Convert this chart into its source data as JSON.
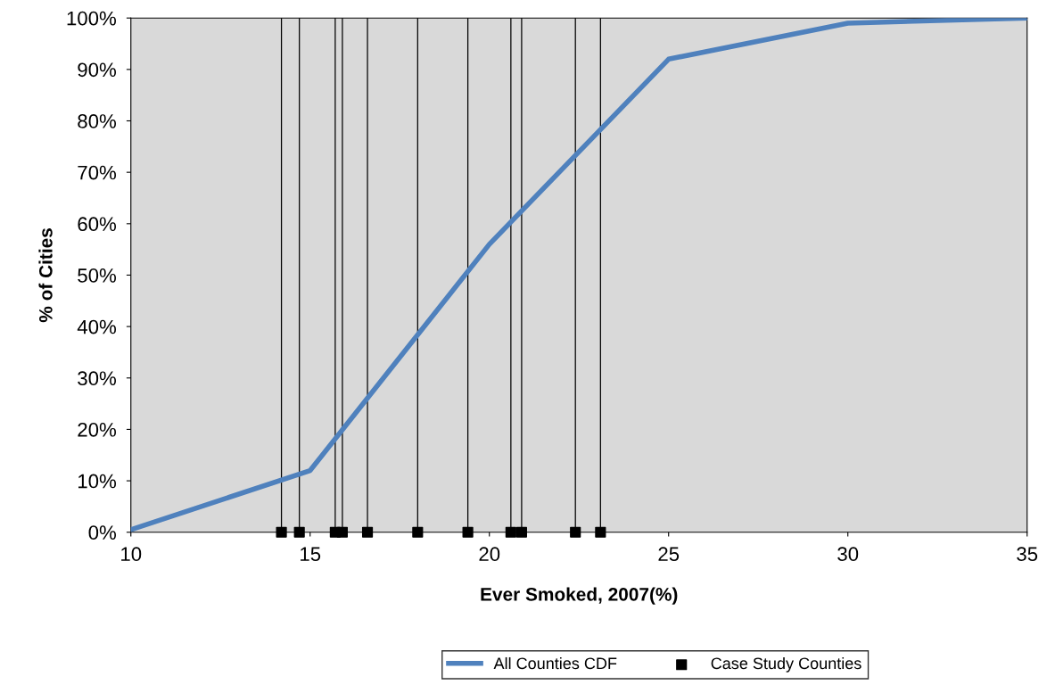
{
  "chart_data": {
    "type": "line",
    "xlabel": "Ever Smoked, 2007(%)",
    "ylabel": "% of Cities",
    "xlim": [
      10,
      35
    ],
    "xticks": [
      10,
      15,
      20,
      25,
      30,
      35
    ],
    "ylim": [
      0,
      100
    ],
    "yticks": [
      {
        "value": 0,
        "label": "0%"
      },
      {
        "value": 10,
        "label": "10%"
      },
      {
        "value": 20,
        "label": "20%"
      },
      {
        "value": 30,
        "label": "30%"
      },
      {
        "value": 40,
        "label": "40%"
      },
      {
        "value": 50,
        "label": "50%"
      },
      {
        "value": 60,
        "label": "60%"
      },
      {
        "value": 70,
        "label": "70%"
      },
      {
        "value": 80,
        "label": "80%"
      },
      {
        "value": 90,
        "label": "90%"
      },
      {
        "value": 100,
        "label": "100%"
      }
    ],
    "series": [
      {
        "name": "All Counties CDF",
        "color": "#4f81bd",
        "marker": "none",
        "x": [
          10,
          15,
          20,
          25,
          30,
          35
        ],
        "values": [
          0.5,
          12,
          56,
          92,
          99,
          100
        ]
      },
      {
        "name": "Case Study Counties",
        "type": "scatter",
        "color": "#000000",
        "marker": "square",
        "x": [
          14.2,
          14.7,
          15.7,
          15.9,
          16.6,
          18.0,
          19.4,
          20.6,
          20.9,
          22.4,
          23.1
        ],
        "values": [
          0,
          0,
          0,
          0,
          0,
          0,
          0,
          0,
          0,
          0,
          0
        ]
      }
    ],
    "ref_lines": [
      {
        "axis": "x",
        "value": 14.2,
        "color": "#000000"
      },
      {
        "axis": "x",
        "value": 14.7,
        "color": "#000000"
      },
      {
        "axis": "x",
        "value": 15.7,
        "color": "#000000"
      },
      {
        "axis": "x",
        "value": 15.9,
        "color": "#000000"
      },
      {
        "axis": "x",
        "value": 16.6,
        "color": "#000000"
      },
      {
        "axis": "x",
        "value": 18.0,
        "color": "#000000"
      },
      {
        "axis": "x",
        "value": 19.4,
        "color": "#000000"
      },
      {
        "axis": "x",
        "value": 20.6,
        "color": "#000000"
      },
      {
        "axis": "x",
        "value": 20.9,
        "color": "#000000"
      },
      {
        "axis": "x",
        "value": 22.4,
        "color": "#000000"
      },
      {
        "axis": "x",
        "value": 23.1,
        "color": "#000000"
      }
    ],
    "grid": false,
    "legend": "bottom"
  }
}
